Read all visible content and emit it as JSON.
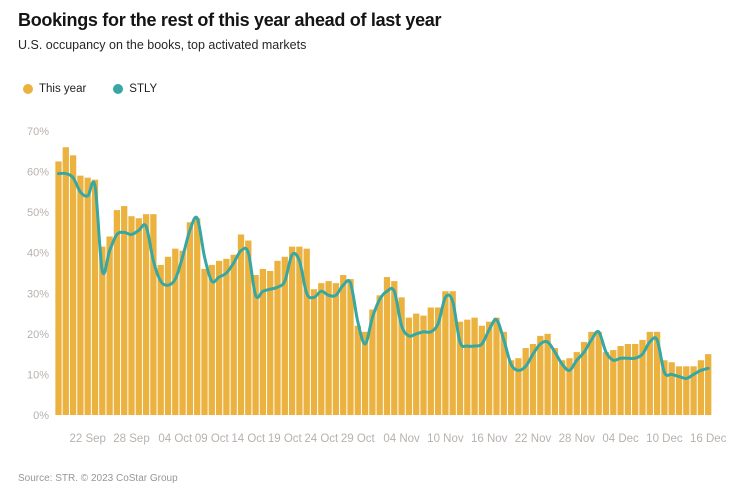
{
  "header": {
    "title": "Bookings for the rest of this year ahead of last year",
    "subtitle": "U.S. occupancy on the books, top activated markets"
  },
  "legend": {
    "items": [
      {
        "label": "This year",
        "color": "#ecb240"
      },
      {
        "label": "STLY",
        "color": "#36a7a3"
      }
    ]
  },
  "footer": {
    "source": "Source: STR. © 2023 CoStar Group"
  },
  "chart_data": {
    "type": "bar",
    "overlay": "line",
    "title": "Bookings for the rest of this year ahead of last year",
    "subtitle": "U.S. occupancy on the books, top activated markets",
    "xlabel": "",
    "ylabel": "",
    "ylim": [
      0,
      70
    ],
    "grid": false,
    "legend_position": "top-left",
    "colors": {
      "bars": "#ecb240",
      "line": "#36a7a3",
      "axis_text": "#b7b1ad"
    },
    "y_ticks": [
      {
        "value": 0,
        "label": "0%"
      },
      {
        "value": 10,
        "label": "10%"
      },
      {
        "value": 20,
        "label": "20%"
      },
      {
        "value": 30,
        "label": "30%"
      },
      {
        "value": 40,
        "label": "40%"
      },
      {
        "value": 50,
        "label": "50%"
      },
      {
        "value": 60,
        "label": "60%"
      },
      {
        "value": 70,
        "label": "70%"
      }
    ],
    "x_ticks": [
      {
        "index": 4,
        "label": "22 Sep"
      },
      {
        "index": 10,
        "label": "28 Sep"
      },
      {
        "index": 16,
        "label": "04 Oct"
      },
      {
        "index": 21,
        "label": "09 Oct"
      },
      {
        "index": 26,
        "label": "14 Oct"
      },
      {
        "index": 31,
        "label": "19 Oct"
      },
      {
        "index": 36,
        "label": "24 Oct"
      },
      {
        "index": 41,
        "label": "29 Oct"
      },
      {
        "index": 47,
        "label": "04 Nov"
      },
      {
        "index": 53,
        "label": "10 Nov"
      },
      {
        "index": 59,
        "label": "16 Nov"
      },
      {
        "index": 65,
        "label": "22 Nov"
      },
      {
        "index": 71,
        "label": "28 Nov"
      },
      {
        "index": 77,
        "label": "04 Dec"
      },
      {
        "index": 83,
        "label": "10 Dec"
      },
      {
        "index": 89,
        "label": "16 Dec"
      }
    ],
    "categories": [
      "18 Sep",
      "19 Sep",
      "20 Sep",
      "21 Sep",
      "22 Sep",
      "23 Sep",
      "24 Sep",
      "25 Sep",
      "26 Sep",
      "27 Sep",
      "28 Sep",
      "29 Sep",
      "30 Sep",
      "01 Oct",
      "02 Oct",
      "03 Oct",
      "04 Oct",
      "05 Oct",
      "06 Oct",
      "07 Oct",
      "08 Oct",
      "09 Oct",
      "10 Oct",
      "11 Oct",
      "12 Oct",
      "13 Oct",
      "14 Oct",
      "15 Oct",
      "16 Oct",
      "17 Oct",
      "18 Oct",
      "19 Oct",
      "20 Oct",
      "21 Oct",
      "22 Oct",
      "23 Oct",
      "24 Oct",
      "25 Oct",
      "26 Oct",
      "27 Oct",
      "28 Oct",
      "29 Oct",
      "30 Oct",
      "31 Oct",
      "01 Nov",
      "02 Nov",
      "03 Nov",
      "04 Nov",
      "05 Nov",
      "06 Nov",
      "07 Nov",
      "08 Nov",
      "09 Nov",
      "10 Nov",
      "11 Nov",
      "12 Nov",
      "13 Nov",
      "14 Nov",
      "15 Nov",
      "16 Nov",
      "17 Nov",
      "18 Nov",
      "19 Nov",
      "20 Nov",
      "21 Nov",
      "22 Nov",
      "23 Nov",
      "24 Nov",
      "25 Nov",
      "26 Nov",
      "27 Nov",
      "28 Nov",
      "29 Nov",
      "30 Nov",
      "01 Dec",
      "02 Dec",
      "03 Dec",
      "04 Dec",
      "05 Dec",
      "06 Dec",
      "07 Dec",
      "08 Dec",
      "09 Dec",
      "10 Dec",
      "11 Dec",
      "12 Dec",
      "13 Dec",
      "14 Dec",
      "15 Dec",
      "16 Dec"
    ],
    "series": [
      {
        "name": "This year",
        "style": "bar",
        "values": [
          62.5,
          66,
          64,
          59,
          58.5,
          58,
          41.5,
          44,
          50.5,
          51.5,
          49,
          48.5,
          49.5,
          49.5,
          37,
          39,
          41,
          40.5,
          47.5,
          48.5,
          36,
          37,
          38,
          38.5,
          39.5,
          44.5,
          43,
          34.5,
          36,
          35.5,
          38,
          39,
          41.5,
          41.5,
          41,
          31,
          32.5,
          33,
          32.5,
          34.5,
          33.5,
          22,
          20.5,
          26,
          29.5,
          34,
          33,
          29,
          24,
          25,
          24.5,
          26.5,
          26.5,
          30.5,
          30.5,
          23,
          23.5,
          24,
          22,
          23,
          24,
          20.5,
          13.5,
          14,
          16.5,
          17.5,
          19.5,
          20,
          16.5,
          13.5,
          14,
          15.5,
          18,
          20.5,
          20.5,
          15.5,
          16,
          17,
          17.5,
          17.5,
          18.5,
          20.5,
          20.5,
          13.5,
          13,
          12,
          12,
          12,
          13.5,
          15
        ]
      },
      {
        "name": "STLY",
        "style": "line",
        "values": [
          59.5,
          59.5,
          58.5,
          55,
          54,
          56.5,
          35.5,
          40.5,
          44.5,
          45,
          44.5,
          45.5,
          46.5,
          38,
          33,
          32,
          33.5,
          39,
          45.5,
          48.5,
          39,
          33,
          34,
          35,
          37.5,
          40.5,
          40,
          29.5,
          30.5,
          31,
          31.5,
          33,
          39.5,
          38,
          30,
          29,
          30.5,
          29.5,
          29.5,
          32,
          32.5,
          23,
          17.5,
          24,
          28.5,
          30.5,
          30.5,
          22,
          19.5,
          20,
          20.5,
          20.5,
          22.5,
          29,
          28,
          18,
          17,
          17,
          17.5,
          21,
          23.5,
          18.5,
          12.5,
          11,
          12,
          15,
          17.5,
          18,
          15.5,
          12.5,
          11,
          13.5,
          15.5,
          18.5,
          20.5,
          15.5,
          13.5,
          14,
          14,
          14,
          15,
          18,
          18.5,
          10.5,
          10,
          9.5,
          9,
          10,
          11,
          11.5
        ]
      }
    ]
  }
}
